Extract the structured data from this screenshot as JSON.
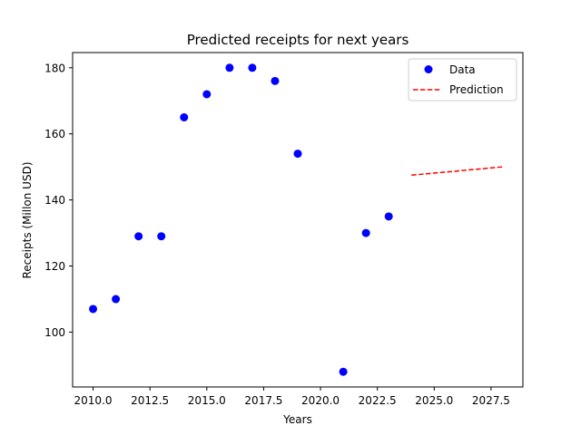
{
  "chart_data": {
    "type": "scatter",
    "title": "Predicted receipts for next years",
    "xlabel": "Years",
    "ylabel": "Receipts (Millon USD)",
    "xlim": [
      2009.1,
      2028.9
    ],
    "ylim": [
      83.4,
      184.6
    ],
    "xticks": [
      2010.0,
      2012.5,
      2015.0,
      2017.5,
      2020.0,
      2022.5,
      2025.0,
      2027.5
    ],
    "xtick_labels": [
      "2010.0",
      "2012.5",
      "2015.0",
      "2017.5",
      "2020.0",
      "2022.5",
      "2025.0",
      "2027.5"
    ],
    "yticks": [
      100,
      120,
      140,
      160,
      180
    ],
    "ytick_labels": [
      "100",
      "120",
      "140",
      "160",
      "180"
    ],
    "grid": false,
    "legend_position": "top-right",
    "series": [
      {
        "name": "Data",
        "kind": "scatter",
        "color": "#0000ff",
        "x": [
          2010,
          2011,
          2012,
          2013,
          2014,
          2015,
          2016,
          2017,
          2018,
          2019,
          2021,
          2022,
          2023
        ],
        "y": [
          107,
          110,
          129,
          129,
          165,
          172,
          180,
          180,
          176,
          154,
          88,
          130,
          135
        ]
      },
      {
        "name": "Prediction",
        "kind": "line",
        "style": "dashed",
        "color": "#ff0000",
        "x": [
          2024,
          2028
        ],
        "y": [
          147.5,
          150
        ]
      }
    ]
  }
}
